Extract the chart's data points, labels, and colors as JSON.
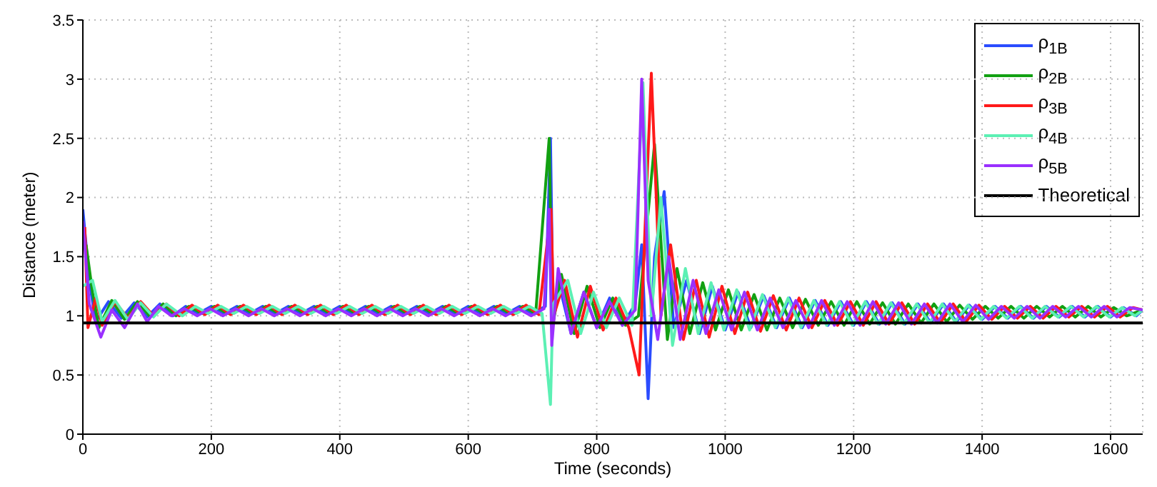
{
  "chart_data": {
    "type": "line",
    "xlabel": "Time (seconds)",
    "ylabel": "Distance (meter)",
    "xlim": [
      0,
      1650
    ],
    "xticks": [
      0,
      200,
      400,
      600,
      800,
      1000,
      1200,
      1400,
      1600
    ],
    "ylim": [
      0,
      3.5
    ],
    "yticks": [
      0,
      0.5,
      1,
      1.5,
      2,
      2.5,
      3,
      3.5
    ],
    "grid": true,
    "legend": "top right",
    "marker": "none",
    "line_style": "solid",
    "series": [
      {
        "name": "ρ$_{1B}$",
        "color": "#2b4cff",
        "x": [
          0,
          10,
          20,
          40,
          60,
          80,
          100,
          120,
          140,
          160,
          180,
          200,
          220,
          240,
          260,
          280,
          300,
          320,
          340,
          360,
          380,
          400,
          420,
          440,
          460,
          480,
          500,
          520,
          540,
          560,
          580,
          600,
          620,
          640,
          660,
          680,
          700,
          720,
          728,
          732,
          740,
          760,
          780,
          800,
          820,
          840,
          860,
          870,
          880,
          890,
          905,
          920,
          940,
          960,
          980,
          1000,
          1020,
          1040,
          1060,
          1080,
          1100,
          1120,
          1140,
          1160,
          1180,
          1200,
          1220,
          1240,
          1260,
          1280,
          1300,
          1320,
          1340,
          1360,
          1380,
          1400,
          1420,
          1440,
          1460,
          1480,
          1500,
          1520,
          1540,
          1560,
          1580,
          1600,
          1620,
          1640,
          1650
        ],
        "values": [
          1.9,
          1.3,
          0.95,
          1.12,
          0.98,
          1.11,
          0.99,
          1.1,
          1.0,
          1.08,
          1.02,
          1.08,
          1.02,
          1.08,
          1.02,
          1.08,
          1.02,
          1.08,
          1.02,
          1.08,
          1.02,
          1.08,
          1.02,
          1.08,
          1.02,
          1.08,
          1.02,
          1.08,
          1.02,
          1.08,
          1.02,
          1.08,
          1.02,
          1.08,
          1.02,
          1.08,
          1.02,
          1.08,
          2.5,
          1.0,
          1.3,
          0.85,
          1.2,
          0.9,
          1.15,
          0.92,
          1.1,
          1.6,
          0.3,
          1.5,
          2.05,
          0.9,
          1.3,
          0.85,
          1.25,
          0.88,
          1.2,
          0.9,
          1.17,
          0.9,
          1.15,
          0.9,
          1.13,
          0.92,
          1.12,
          0.92,
          1.12,
          0.93,
          1.11,
          0.93,
          1.1,
          0.94,
          1.1,
          0.95,
          1.09,
          0.97,
          1.08,
          0.98,
          1.08,
          0.98,
          1.08,
          0.99,
          1.08,
          0.99,
          1.08,
          0.99,
          1.07,
          1.0,
          1.05
        ]
      },
      {
        "name": "ρ$_{2B}$",
        "color": "#12a012",
        "x": [
          5,
          15,
          25,
          45,
          65,
          85,
          105,
          125,
          145,
          165,
          185,
          205,
          225,
          245,
          265,
          285,
          305,
          325,
          345,
          365,
          385,
          405,
          425,
          445,
          465,
          485,
          505,
          525,
          545,
          565,
          585,
          605,
          625,
          645,
          665,
          685,
          705,
          726,
          731,
          745,
          765,
          785,
          805,
          825,
          845,
          865,
          890,
          910,
          925,
          945,
          965,
          985,
          1005,
          1025,
          1045,
          1065,
          1085,
          1105,
          1125,
          1145,
          1165,
          1185,
          1205,
          1225,
          1245,
          1265,
          1285,
          1305,
          1325,
          1345,
          1365,
          1385,
          1405,
          1425,
          1445,
          1465,
          1485,
          1505,
          1525,
          1545,
          1565,
          1585,
          1605,
          1625,
          1650
        ],
        "values": [
          1.6,
          1.2,
          0.9,
          1.13,
          0.97,
          1.12,
          0.99,
          1.1,
          1.0,
          1.08,
          1.02,
          1.08,
          1.02,
          1.08,
          1.02,
          1.08,
          1.02,
          1.08,
          1.02,
          1.08,
          1.02,
          1.08,
          1.02,
          1.08,
          1.02,
          1.08,
          1.02,
          1.08,
          1.02,
          1.08,
          1.02,
          1.08,
          1.02,
          1.08,
          1.02,
          1.08,
          1.02,
          2.5,
          0.9,
          1.35,
          0.85,
          1.25,
          0.9,
          1.15,
          0.92,
          1.0,
          2.45,
          0.8,
          1.4,
          0.85,
          1.28,
          0.88,
          1.22,
          0.88,
          1.18,
          0.88,
          1.15,
          0.9,
          1.14,
          0.92,
          1.12,
          0.92,
          1.12,
          0.93,
          1.11,
          0.93,
          1.1,
          0.94,
          1.1,
          0.95,
          1.09,
          0.97,
          1.08,
          0.98,
          1.08,
          0.98,
          1.08,
          0.99,
          1.08,
          0.99,
          1.08,
          0.99,
          1.07,
          1.0,
          1.05
        ]
      },
      {
        "name": "ρ$_{3B}$",
        "color": "#ff1a1a",
        "x": [
          3,
          8,
          20,
          30,
          50,
          70,
          90,
          110,
          130,
          150,
          170,
          190,
          210,
          230,
          250,
          270,
          290,
          310,
          330,
          350,
          370,
          390,
          410,
          430,
          450,
          470,
          490,
          510,
          530,
          550,
          570,
          590,
          610,
          630,
          650,
          670,
          690,
          710,
          729,
          733,
          750,
          770,
          790,
          810,
          830,
          850,
          866,
          885,
          900,
          915,
          935,
          955,
          975,
          995,
          1015,
          1035,
          1055,
          1075,
          1095,
          1115,
          1135,
          1155,
          1175,
          1195,
          1215,
          1235,
          1255,
          1275,
          1295,
          1315,
          1335,
          1355,
          1375,
          1395,
          1415,
          1435,
          1455,
          1475,
          1495,
          1515,
          1535,
          1555,
          1575,
          1595,
          1615,
          1635,
          1650
        ],
        "values": [
          1.75,
          0.9,
          1.15,
          0.92,
          1.12,
          0.98,
          1.12,
          1.0,
          1.1,
          1.0,
          1.09,
          1.01,
          1.09,
          1.01,
          1.09,
          1.01,
          1.09,
          1.01,
          1.09,
          1.01,
          1.09,
          1.01,
          1.09,
          1.01,
          1.09,
          1.01,
          1.09,
          1.01,
          1.09,
          1.01,
          1.09,
          1.01,
          1.09,
          1.01,
          1.09,
          1.01,
          1.09,
          1.01,
          1.9,
          1.0,
          1.3,
          0.82,
          1.25,
          0.88,
          1.15,
          0.9,
          0.5,
          3.05,
          1.0,
          1.6,
          0.8,
          1.3,
          0.82,
          1.25,
          0.85,
          1.2,
          0.87,
          1.17,
          0.88,
          1.15,
          0.9,
          1.13,
          0.92,
          1.12,
          0.92,
          1.12,
          0.93,
          1.11,
          0.93,
          1.1,
          0.94,
          1.1,
          0.95,
          1.09,
          0.97,
          1.08,
          0.98,
          1.08,
          0.98,
          1.08,
          0.99,
          1.08,
          0.99,
          1.08,
          0.99,
          1.07,
          1.05
        ]
      },
      {
        "name": "ρ$_{4B}$",
        "color": "#5cf0b4",
        "x": [
          0,
          15,
          30,
          50,
          70,
          90,
          110,
          130,
          155,
          175,
          195,
          215,
          235,
          255,
          275,
          295,
          315,
          335,
          355,
          375,
          395,
          415,
          435,
          455,
          475,
          495,
          515,
          535,
          555,
          575,
          595,
          615,
          635,
          655,
          675,
          695,
          715,
          728,
          732,
          755,
          775,
          795,
          815,
          835,
          855,
          872,
          885,
          900,
          918,
          938,
          958,
          978,
          998,
          1018,
          1038,
          1058,
          1078,
          1098,
          1118,
          1138,
          1158,
          1178,
          1198,
          1218,
          1238,
          1258,
          1278,
          1298,
          1318,
          1338,
          1358,
          1378,
          1398,
          1418,
          1438,
          1458,
          1478,
          1498,
          1518,
          1538,
          1558,
          1578,
          1598,
          1618,
          1638,
          1650
        ],
        "values": [
          1.25,
          1.3,
          0.95,
          1.13,
          0.97,
          1.11,
          0.99,
          1.1,
          1.0,
          1.08,
          1.02,
          1.08,
          1.02,
          1.08,
          1.02,
          1.08,
          1.02,
          1.08,
          1.02,
          1.08,
          1.02,
          1.08,
          1.02,
          1.08,
          1.02,
          1.08,
          1.02,
          1.08,
          1.02,
          1.08,
          1.02,
          1.08,
          1.02,
          1.08,
          1.02,
          1.08,
          1.02,
          0.25,
          1.1,
          1.3,
          0.85,
          1.2,
          0.9,
          1.15,
          0.92,
          2.97,
          1.0,
          2.0,
          0.75,
          1.4,
          0.85,
          1.28,
          0.88,
          1.22,
          0.88,
          1.18,
          0.9,
          1.15,
          0.9,
          1.13,
          0.92,
          1.12,
          0.92,
          1.12,
          0.93,
          1.11,
          0.93,
          1.1,
          0.94,
          1.1,
          0.95,
          1.09,
          0.97,
          1.08,
          0.98,
          1.08,
          0.98,
          1.08,
          0.99,
          1.08,
          0.99,
          1.08,
          0.99,
          1.07,
          1.0,
          1.05
        ]
      },
      {
        "name": "ρ$_{5B}$",
        "color": "#9a30ff",
        "x": [
          0,
          10,
          28,
          45,
          65,
          85,
          100,
          118,
          138,
          158,
          178,
          198,
          218,
          238,
          258,
          278,
          298,
          318,
          338,
          358,
          378,
          398,
          418,
          438,
          458,
          478,
          498,
          518,
          538,
          558,
          578,
          598,
          618,
          638,
          658,
          678,
          698,
          718,
          726,
          730,
          740,
          760,
          780,
          800,
          820,
          840,
          860,
          870,
          880,
          895,
          912,
          930,
          950,
          970,
          990,
          1010,
          1030,
          1050,
          1070,
          1090,
          1110,
          1130,
          1150,
          1170,
          1190,
          1210,
          1230,
          1250,
          1270,
          1290,
          1310,
          1330,
          1350,
          1370,
          1390,
          1410,
          1430,
          1450,
          1470,
          1490,
          1510,
          1530,
          1550,
          1570,
          1590,
          1610,
          1630,
          1650
        ],
        "values": [
          1.8,
          1.1,
          0.82,
          1.05,
          0.9,
          1.1,
          0.95,
          1.08,
          1.0,
          1.06,
          1.0,
          1.06,
          1.0,
          1.06,
          1.0,
          1.06,
          1.0,
          1.06,
          1.0,
          1.06,
          1.0,
          1.06,
          1.0,
          1.06,
          1.0,
          1.06,
          1.0,
          1.06,
          1.0,
          1.06,
          1.0,
          1.06,
          1.0,
          1.06,
          1.0,
          1.06,
          1.0,
          1.06,
          1.9,
          0.75,
          1.4,
          0.85,
          1.2,
          0.9,
          1.12,
          0.92,
          1.05,
          3.0,
          1.3,
          0.8,
          1.5,
          0.8,
          1.3,
          0.85,
          1.22,
          0.88,
          1.2,
          0.88,
          1.15,
          0.9,
          1.13,
          0.9,
          1.13,
          0.92,
          1.12,
          0.92,
          1.12,
          0.93,
          1.11,
          0.93,
          1.1,
          0.94,
          1.1,
          0.95,
          1.09,
          0.97,
          1.08,
          0.98,
          1.08,
          0.98,
          1.08,
          0.99,
          1.08,
          0.99,
          1.08,
          0.99,
          1.07,
          1.05
        ]
      },
      {
        "name": "Theoretical",
        "color": "#000000",
        "x": [
          0,
          1650
        ],
        "values": [
          0.94,
          0.94
        ]
      }
    ]
  }
}
